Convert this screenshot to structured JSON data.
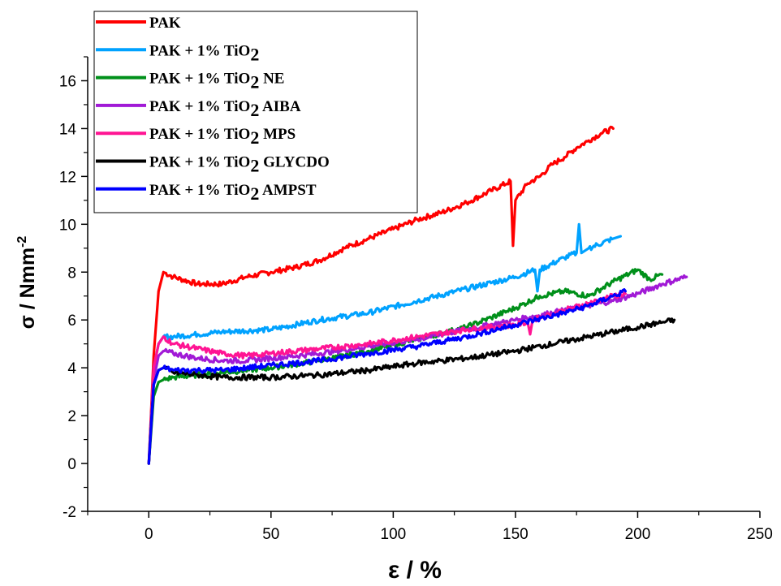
{
  "chart_data": {
    "type": "line",
    "title": "",
    "xlabel": "ε / %",
    "ylabel": "σ / Nmm",
    "ylabel_superscript": "-2",
    "xlim": [
      -25,
      250
    ],
    "ylim": [
      -2,
      17
    ],
    "x_ticks": [
      "0",
      "50",
      "100",
      "150",
      "200",
      "250"
    ],
    "y_ticks": [
      "-2",
      "0",
      "2",
      "4",
      "6",
      "8",
      "10",
      "12",
      "14",
      "16"
    ],
    "grid": false,
    "legend_position": "top-left",
    "series": [
      {
        "name": "PAK",
        "legend_label": "PAK",
        "color": "#ff0000",
        "x": [
          0,
          2,
          4,
          6,
          10,
          20,
          30,
          40,
          50,
          60,
          70,
          80,
          90,
          100,
          110,
          120,
          130,
          140,
          148,
          149,
          150,
          155,
          160,
          165,
          170,
          175,
          180,
          185,
          190
        ],
        "y": [
          0,
          4.5,
          7.2,
          8.0,
          7.8,
          7.5,
          7.5,
          7.8,
          8.0,
          8.2,
          8.5,
          9.0,
          9.4,
          9.8,
          10.2,
          10.5,
          10.9,
          11.4,
          11.8,
          9.1,
          11.0,
          11.7,
          12.0,
          12.5,
          12.8,
          13.2,
          13.5,
          13.8,
          14.0
        ]
      },
      {
        "name": "PAK + 1% TiO2",
        "legend_label": "PAK + 1% TiO",
        "legend_sub": "2",
        "legend_suffix": "",
        "color": "#00a2ff",
        "x": [
          0,
          2,
          4,
          6,
          10,
          20,
          30,
          50,
          70,
          90,
          110,
          130,
          150,
          158,
          159,
          160,
          170,
          175,
          176,
          177,
          180,
          190,
          193
        ],
        "y": [
          0,
          4.0,
          5.0,
          5.3,
          5.3,
          5.4,
          5.5,
          5.6,
          6.0,
          6.3,
          6.8,
          7.3,
          7.8,
          8.1,
          7.2,
          8.1,
          8.6,
          8.8,
          10.0,
          8.8,
          9.0,
          9.4,
          9.5
        ]
      },
      {
        "name": "PAK + 1% TiO2 NE",
        "legend_label": "PAK + 1% TiO",
        "legend_sub": "2",
        "legend_suffix": " NE",
        "color": "#00901a",
        "x": [
          0,
          2,
          4,
          6,
          10,
          20,
          30,
          50,
          70,
          90,
          110,
          130,
          140,
          150,
          160,
          170,
          180,
          190,
          200,
          205,
          210
        ],
        "y": [
          0,
          2.8,
          3.4,
          3.5,
          3.6,
          3.7,
          3.8,
          4.0,
          4.3,
          4.7,
          5.2,
          5.7,
          6.1,
          6.5,
          7.0,
          7.2,
          7.0,
          7.6,
          8.1,
          7.7,
          7.9
        ]
      },
      {
        "name": "PAK + 1% TiO2 AIBA",
        "legend_label": "PAK + 1% TiO",
        "legend_sub": "2",
        "legend_suffix": " AIBA",
        "color": "#a11ad6",
        "x": [
          0,
          2,
          4,
          6,
          10,
          20,
          30,
          40,
          50,
          70,
          90,
          110,
          130,
          150,
          170,
          190,
          200,
          210,
          220
        ],
        "y": [
          0,
          3.5,
          4.5,
          4.7,
          4.6,
          4.4,
          4.3,
          4.3,
          4.4,
          4.6,
          4.9,
          5.2,
          5.6,
          6.0,
          6.4,
          6.8,
          7.1,
          7.5,
          7.8
        ]
      },
      {
        "name": "PAK + 1% TiO2 MPS",
        "legend_label": "PAK + 1% TiO",
        "legend_sub": "2",
        "legend_suffix": " MPS",
        "color": "#ff1493",
        "x": [
          0,
          2,
          4,
          6,
          10,
          20,
          30,
          40,
          50,
          70,
          90,
          110,
          130,
          150,
          155,
          156,
          157,
          170,
          180,
          190,
          195
        ],
        "y": [
          0,
          4.0,
          5.0,
          5.3,
          5.0,
          4.8,
          4.6,
          4.5,
          4.6,
          4.8,
          5.0,
          5.3,
          5.6,
          5.8,
          5.9,
          5.4,
          6.0,
          6.4,
          6.7,
          7.0,
          7.1
        ]
      },
      {
        "name": "PAK + 1% TiO2 GLYCDO",
        "legend_label": "PAK + 1% TiO",
        "legend_sub": "2",
        "legend_suffix": " GLYCDO",
        "color": "#000000",
        "x": [
          0,
          2,
          4,
          6,
          10,
          20,
          30,
          50,
          70,
          90,
          110,
          130,
          150,
          170,
          190,
          200,
          210,
          215
        ],
        "y": [
          0,
          3.3,
          3.9,
          4.0,
          3.8,
          3.7,
          3.6,
          3.6,
          3.7,
          3.9,
          4.2,
          4.4,
          4.7,
          5.1,
          5.5,
          5.7,
          5.9,
          6.0
        ]
      },
      {
        "name": "PAK + 1% TiO2 AMPST",
        "legend_label": "PAK + 1% TiO",
        "legend_sub": "2",
        "legend_suffix": " AMPST",
        "color": "#0000ff",
        "x": [
          0,
          2,
          4,
          6,
          10,
          20,
          30,
          40,
          50,
          70,
          90,
          110,
          130,
          150,
          170,
          180,
          190,
          195
        ],
        "y": [
          0,
          3.3,
          3.9,
          4.0,
          3.9,
          3.9,
          3.9,
          4.0,
          4.1,
          4.3,
          4.6,
          4.9,
          5.3,
          5.8,
          6.3,
          6.6,
          7.0,
          7.2
        ]
      }
    ]
  }
}
